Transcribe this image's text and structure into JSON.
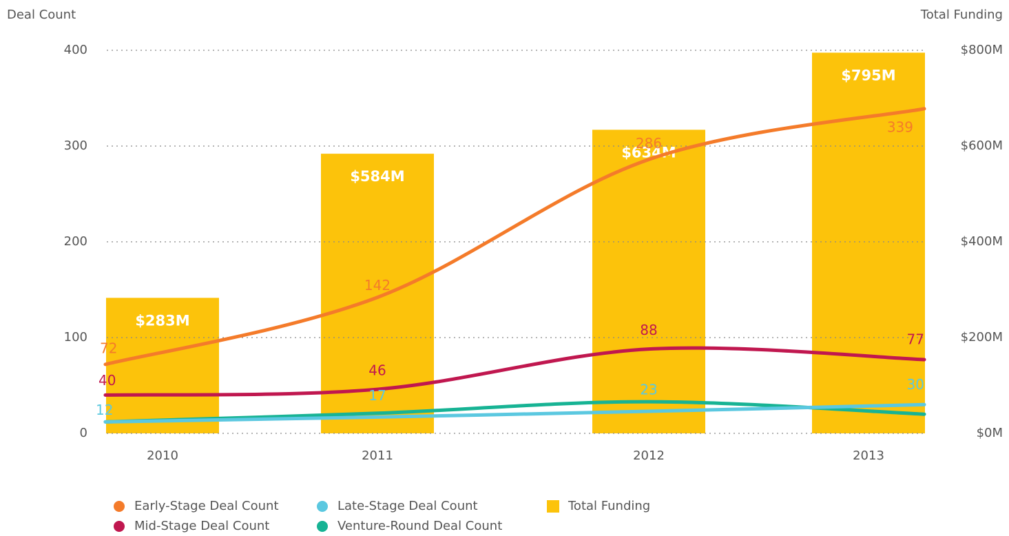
{
  "chart_data": {
    "type": "bar+line",
    "y_label": "Deal Count",
    "y2_label": "Total Funding",
    "categories": [
      "2010",
      "2011",
      "2012",
      "2013"
    ],
    "ylim": [
      0,
      400
    ],
    "yticks": [
      0,
      100,
      200,
      300,
      400
    ],
    "y2lim": [
      0,
      800
    ],
    "y2ticks": [
      {
        "value": 0,
        "label": "$0M"
      },
      {
        "value": 200,
        "label": "$200M"
      },
      {
        "value": 400,
        "label": "$400M"
      },
      {
        "value": 600,
        "label": "$600M"
      },
      {
        "value": 800,
        "label": "$800M"
      }
    ],
    "grid": true,
    "series": [
      {
        "name": "Total Funding",
        "type": "bar",
        "axis": "y2",
        "color": "#fcc30b",
        "values": [
          283,
          584,
          634,
          795
        ],
        "value_labels": [
          "$283M",
          "$584M",
          "$634M",
          "$795M"
        ]
      },
      {
        "name": "Early-Stage Deal Count",
        "type": "line",
        "color": "#f47b2a",
        "values": [
          72,
          142,
          286,
          339
        ],
        "show_labels": true
      },
      {
        "name": "Mid-Stage Deal Count",
        "type": "line",
        "color": "#c0174f",
        "values": [
          40,
          46,
          88,
          77
        ],
        "show_labels": true
      },
      {
        "name": "Late-Stage Deal Count",
        "type": "line",
        "color": "#5bc8e0",
        "values": [
          12,
          17,
          23,
          30
        ],
        "show_labels": true
      },
      {
        "name": "Venture-Round Deal Count",
        "type": "line",
        "color": "#17b394",
        "values": [
          12,
          21,
          33,
          20
        ],
        "show_labels": false
      }
    ]
  }
}
